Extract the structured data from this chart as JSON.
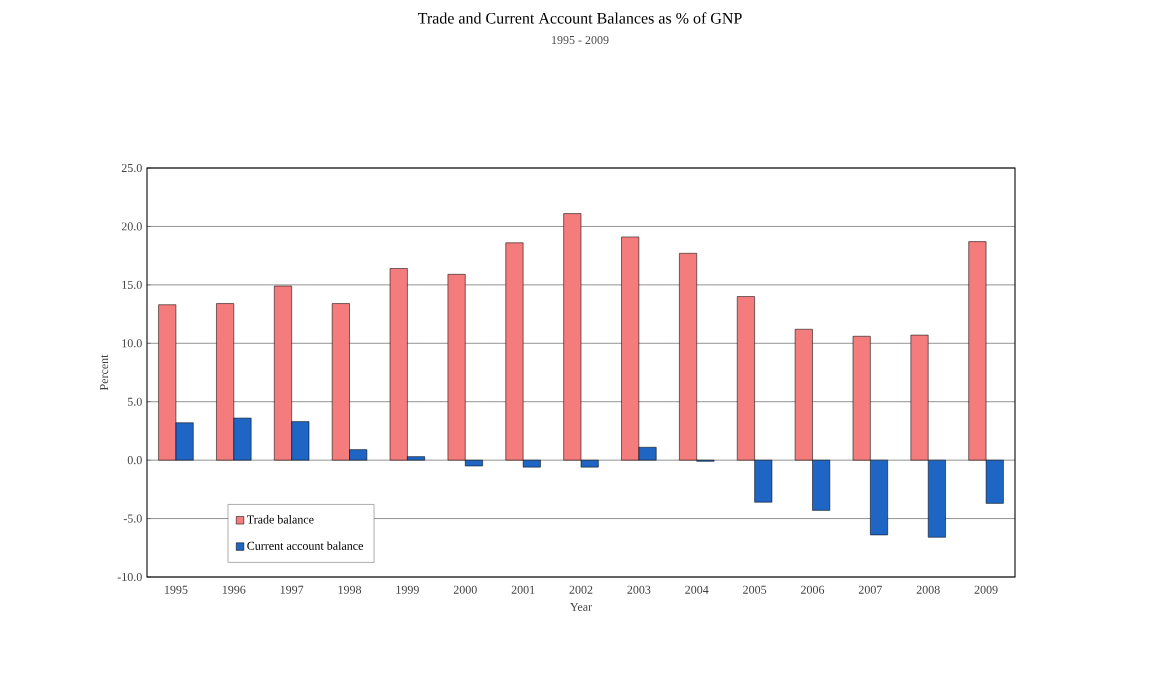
{
  "chart_data": {
    "type": "bar",
    "title": "Trade and Current Account Balances as % of GNP",
    "subtitle": "1995 - 2009",
    "xlabel": "Year",
    "ylabel": "Percent",
    "categories": [
      "1995",
      "1996",
      "1997",
      "1998",
      "1999",
      "2000",
      "2001",
      "2002",
      "2003",
      "2004",
      "2005",
      "2006",
      "2007",
      "2008",
      "2009"
    ],
    "series": [
      {
        "name": "Trade balance",
        "color": "#f47c7c",
        "values": [
          13.3,
          13.4,
          14.9,
          13.4,
          16.4,
          15.9,
          18.6,
          21.1,
          19.1,
          17.7,
          14.0,
          11.2,
          10.6,
          10.7,
          18.7
        ]
      },
      {
        "name": "Current account balance",
        "color": "#1f66c4",
        "values": [
          3.2,
          3.6,
          3.3,
          0.9,
          0.3,
          -0.5,
          -0.6,
          -0.6,
          1.1,
          -0.1,
          -3.6,
          -4.3,
          -6.4,
          -6.6,
          -3.7
        ]
      }
    ],
    "ylim": [
      -10,
      25
    ],
    "yticks": [
      {
        "value": -10,
        "label": "-10.0"
      },
      {
        "value": -5,
        "label": "-5.0"
      },
      {
        "value": 0,
        "label": "0.0"
      },
      {
        "value": 5,
        "label": "5.0"
      },
      {
        "value": 10,
        "label": "10.0"
      },
      {
        "value": 15,
        "label": "15.0"
      },
      {
        "value": 20,
        "label": "20.0"
      },
      {
        "value": 25,
        "label": "25.0"
      }
    ],
    "grid": "y",
    "legend": "bottom left"
  }
}
